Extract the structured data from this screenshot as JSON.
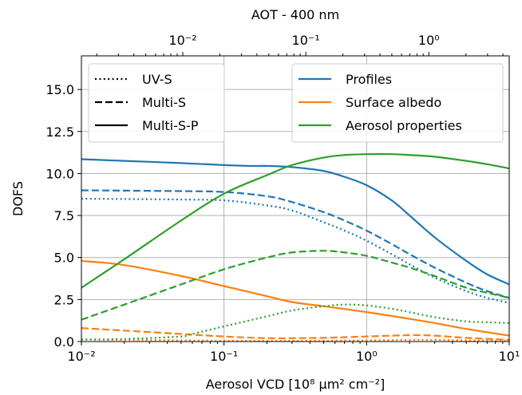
{
  "chart_data": {
    "type": "line",
    "xlabel": "Aerosol VCD [10⁸ μm² cm⁻²]",
    "ylabel": "DOFS",
    "top_xlabel": "AOT - 400 nm",
    "xscale": "log",
    "top_xscale": "log",
    "xlim": [
      0.01,
      10
    ],
    "ylim": [
      0,
      17
    ],
    "top_xlim": [
      0.0015,
      4.5
    ],
    "grid": true,
    "x_ticks": [
      {
        "value": 0.01,
        "label": "10⁻²"
      },
      {
        "value": 0.1,
        "label": "10⁻¹"
      },
      {
        "value": 1,
        "label": "10⁰"
      },
      {
        "value": 10,
        "label": "10¹"
      }
    ],
    "y_ticks": [
      {
        "value": 0,
        "label": "0.0"
      },
      {
        "value": 2.5,
        "label": "2.5"
      },
      {
        "value": 5,
        "label": "5.0"
      },
      {
        "value": 7.5,
        "label": "7.5"
      },
      {
        "value": 10,
        "label": "10.0"
      },
      {
        "value": 12.5,
        "label": "12.5"
      },
      {
        "value": 15,
        "label": "15.0"
      }
    ],
    "top_x_ticks": [
      {
        "value": 0.01,
        "label": "10⁻²"
      },
      {
        "value": 0.1,
        "label": "10⁻¹"
      },
      {
        "value": 1,
        "label": "10⁰"
      }
    ],
    "legend_styles": {
      "placement": "top-left",
      "entries": [
        {
          "label": "UV-S",
          "dash": "dotted"
        },
        {
          "label": "Multi-S",
          "dash": "dashed"
        },
        {
          "label": "Multi-S-P",
          "dash": "solid"
        }
      ]
    },
    "legend_colors": {
      "placement": "top-right",
      "entries": [
        {
          "label": "Profiles",
          "color": "#1f77b4"
        },
        {
          "label": "Surface albedo",
          "color": "#ff7f0e"
        },
        {
          "label": "Aerosol properties",
          "color": "#2ca02c"
        }
      ]
    },
    "series": [
      {
        "quantity": "Profiles",
        "scenario": "Multi-S-P",
        "color": "#1f77b4",
        "dash": "solid",
        "x": [
          0.01,
          0.02,
          0.05,
          0.1,
          0.15,
          0.2,
          0.3,
          0.5,
          0.7,
          1,
          1.5,
          2,
          3,
          5,
          7,
          10
        ],
        "y": [
          10.85,
          10.75,
          10.62,
          10.5,
          10.45,
          10.45,
          10.38,
          10.15,
          9.8,
          9.3,
          8.4,
          7.5,
          6.2,
          4.8,
          4.0,
          3.4
        ]
      },
      {
        "quantity": "Profiles",
        "scenario": "Multi-S",
        "color": "#1f77b4",
        "dash": "dashed",
        "x": [
          0.01,
          0.02,
          0.05,
          0.1,
          0.2,
          0.3,
          0.5,
          0.7,
          1,
          1.5,
          2,
          3,
          5,
          7,
          10
        ],
        "y": [
          9.0,
          8.98,
          8.95,
          8.9,
          8.65,
          8.3,
          7.7,
          7.2,
          6.6,
          5.8,
          5.2,
          4.4,
          3.5,
          3.0,
          2.6
        ]
      },
      {
        "quantity": "Profiles",
        "scenario": "UV-S",
        "color": "#1f77b4",
        "dash": "dotted",
        "x": [
          0.01,
          0.02,
          0.05,
          0.1,
          0.2,
          0.3,
          0.5,
          0.7,
          1,
          1.5,
          2,
          3,
          5,
          7,
          10
        ],
        "y": [
          8.5,
          8.48,
          8.45,
          8.4,
          8.1,
          7.8,
          7.1,
          6.6,
          6.0,
          5.2,
          4.6,
          3.8,
          3.0,
          2.6,
          2.3
        ]
      },
      {
        "quantity": "Surface albedo",
        "scenario": "Multi-S-P",
        "color": "#ff7f0e",
        "dash": "solid",
        "x": [
          0.01,
          0.02,
          0.05,
          0.1,
          0.2,
          0.3,
          0.5,
          1,
          2,
          3,
          5,
          10
        ],
        "y": [
          4.8,
          4.55,
          3.9,
          3.3,
          2.7,
          2.35,
          2.1,
          1.75,
          1.35,
          1.1,
          0.75,
          0.35
        ]
      },
      {
        "quantity": "Surface albedo",
        "scenario": "Multi-S",
        "color": "#ff7f0e",
        "dash": "dashed",
        "x": [
          0.01,
          0.02,
          0.05,
          0.1,
          0.2,
          0.3,
          0.5,
          1,
          2,
          3,
          5,
          10
        ],
        "y": [
          0.8,
          0.65,
          0.45,
          0.3,
          0.2,
          0.2,
          0.22,
          0.3,
          0.38,
          0.35,
          0.22,
          0.1
        ]
      },
      {
        "quantity": "Surface albedo",
        "scenario": "UV-S",
        "color": "#ff7f0e",
        "dash": "dotted",
        "x": [
          0.01,
          0.02,
          0.05,
          0.1,
          0.2,
          0.3,
          0.5,
          1,
          2,
          3,
          5,
          10
        ],
        "y": [
          0.12,
          0.1,
          0.07,
          0.05,
          0.04,
          0.04,
          0.05,
          0.07,
          0.1,
          0.1,
          0.07,
          0.05
        ]
      },
      {
        "quantity": "Aerosol properties",
        "scenario": "Multi-S-P",
        "color": "#2ca02c",
        "dash": "solid",
        "x": [
          0.01,
          0.02,
          0.05,
          0.1,
          0.2,
          0.3,
          0.5,
          0.7,
          1,
          1.5,
          2,
          3,
          5,
          7,
          10
        ],
        "y": [
          3.2,
          4.9,
          7.2,
          8.8,
          9.9,
          10.5,
          10.95,
          11.1,
          11.15,
          11.15,
          11.1,
          11.0,
          10.75,
          10.55,
          10.3
        ]
      },
      {
        "quantity": "Aerosol properties",
        "scenario": "Multi-S",
        "color": "#2ca02c",
        "dash": "dashed",
        "x": [
          0.01,
          0.02,
          0.05,
          0.1,
          0.2,
          0.3,
          0.5,
          0.7,
          1,
          1.5,
          2,
          3,
          5,
          7,
          10
        ],
        "y": [
          1.3,
          2.2,
          3.4,
          4.3,
          5.0,
          5.3,
          5.4,
          5.3,
          5.1,
          4.7,
          4.4,
          3.9,
          3.2,
          2.9,
          2.6
        ]
      },
      {
        "quantity": "Aerosol properties",
        "scenario": "UV-S",
        "color": "#2ca02c",
        "dash": "dotted",
        "x": [
          0.01,
          0.02,
          0.05,
          0.06,
          0.1,
          0.2,
          0.3,
          0.5,
          0.7,
          1,
          1.5,
          2,
          3,
          5,
          7,
          10
        ],
        "y": [
          0.12,
          0.15,
          0.3,
          0.45,
          0.9,
          1.5,
          1.85,
          2.1,
          2.2,
          2.15,
          1.95,
          1.75,
          1.45,
          1.2,
          1.15,
          1.1
        ]
      }
    ]
  }
}
